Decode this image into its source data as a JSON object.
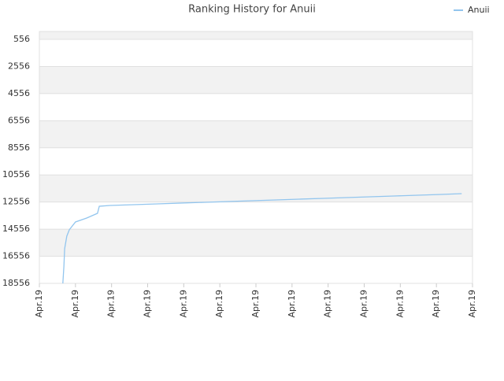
{
  "chart_data": {
    "type": "line",
    "title": "Ranking History for Anuii",
    "x": [
      0.65,
      0.68,
      0.7,
      0.76,
      0.83,
      1.0,
      1.31,
      1.61,
      1.66,
      1.96,
      2.62,
      3.27,
      3.93,
      4.58,
      5.24,
      5.89,
      6.55,
      7.2,
      7.86,
      8.51,
      9.16,
      9.82,
      10.47,
      11.13,
      11.7
    ],
    "series": [
      {
        "name": "Anuii",
        "color": "#92c5ee",
        "values": [
          18556,
          17278,
          16000,
          15070,
          14600,
          14025,
          13735,
          13390,
          12865,
          12806,
          12750,
          12690,
          12630,
          12575,
          12516,
          12458,
          12400,
          12342,
          12284,
          12226,
          12168,
          12110,
          12052,
          11994,
          11935
        ]
      }
    ],
    "xlim": [
      0,
      12
    ],
    "xticks": [
      {
        "value": 0,
        "label": "Apr.19"
      },
      {
        "value": 1,
        "label": "Apr.19"
      },
      {
        "value": 2,
        "label": "Apr.19"
      },
      {
        "value": 3,
        "label": "Apr.19"
      },
      {
        "value": 4,
        "label": "Apr.19"
      },
      {
        "value": 5,
        "label": "Apr.19"
      },
      {
        "value": 6,
        "label": "Apr.19"
      },
      {
        "value": 7,
        "label": "Apr.19"
      },
      {
        "value": 8,
        "label": "Apr.19"
      },
      {
        "value": 9,
        "label": "Apr.19"
      },
      {
        "value": 10,
        "label": "Apr.19"
      },
      {
        "value": 11,
        "label": "Apr.19"
      },
      {
        "value": 12,
        "label": "Apr.19"
      }
    ],
    "ylim": [
      18556,
      -25
    ],
    "yticks": [
      556,
      2556,
      4556,
      6556,
      8556,
      10556,
      12556,
      14556,
      16556,
      18556
    ],
    "grid": true,
    "legend": "top-right"
  }
}
